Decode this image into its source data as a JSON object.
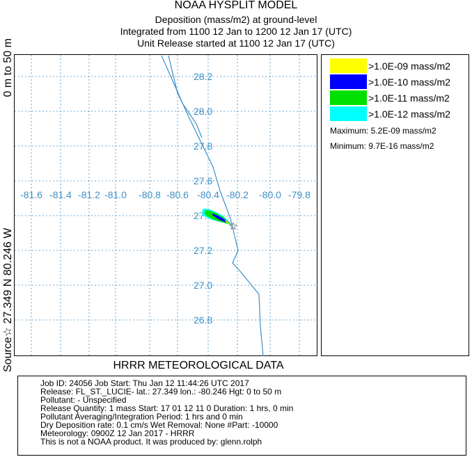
{
  "header": {
    "line1": "NOAA HYSPLIT MODEL",
    "line2": "Deposition  (mass/m2) at ground-level",
    "line3": "Integrated from 1100 12 Jan to 1200 12 Jan 17 (UTC)",
    "line4": "Unit Release started at 1100 12 Jan 17 (UTC)"
  },
  "side_label": {
    "parts": [
      "Source☆ 27.349  N  80.246  W",
      "0 m to  50 m"
    ]
  },
  "map": {
    "lat_ticks": [
      "28.2",
      "28.0",
      "27.8",
      "27.6",
      "27.4",
      "27.2",
      "27.0",
      "26.8"
    ],
    "lon_ticks": [
      "-81.6",
      "-81.4",
      "-81.2",
      "-81.0",
      "-80.8",
      "-80.6",
      "-80.4",
      "-80.2",
      "-80.0",
      "-79.8"
    ],
    "source_marker": "☆",
    "grid_color": "#3d8fc6",
    "coast_color": "#3d8fc6"
  },
  "legend": {
    "entries": [
      {
        "color": "#ffff00",
        "label": ">1.0E-09 mass/m2"
      },
      {
        "color": "#0000ff",
        "label": ">1.0E-10 mass/m2"
      },
      {
        "color": "#00e000",
        "label": ">1.0E-11 mass/m2"
      },
      {
        "color": "#00ffff",
        "label": ">1.0E-12 mass/m2"
      }
    ],
    "maximum": "Maximum: 5.2E-09 mass/m2",
    "minimum": "Minimum: 9.7E-16 mass/m2"
  },
  "meteorology_title": "HRRR METEOROLOGICAL DATA",
  "info": {
    "lines": [
      "Job ID: 24056                      Job Start: Thu Jan 12 11:44:26 UTC 2017",
      "Release: FL_ST._LUCIE-  lat.: 27.349   lon.: -80.246   Hgt: 0 to 50 m",
      "Pollutant:    - Unspecified",
      "Release Quantity: 1 mass  Start: 17 01 12 11 0  Duration: 1 hrs, 0 min",
      "Pollutant Averaging/Integration Period: 1 hrs and 0 min",
      "Dry Deposition rate: 0.1 cm/s       Wet Removal:   None   #Part: -10000",
      "Meteorology: 0900Z 12 Jan 2017 - HRRR",
      "This is not a NOAA product. It was produced by: glenn.rolph"
    ]
  }
}
